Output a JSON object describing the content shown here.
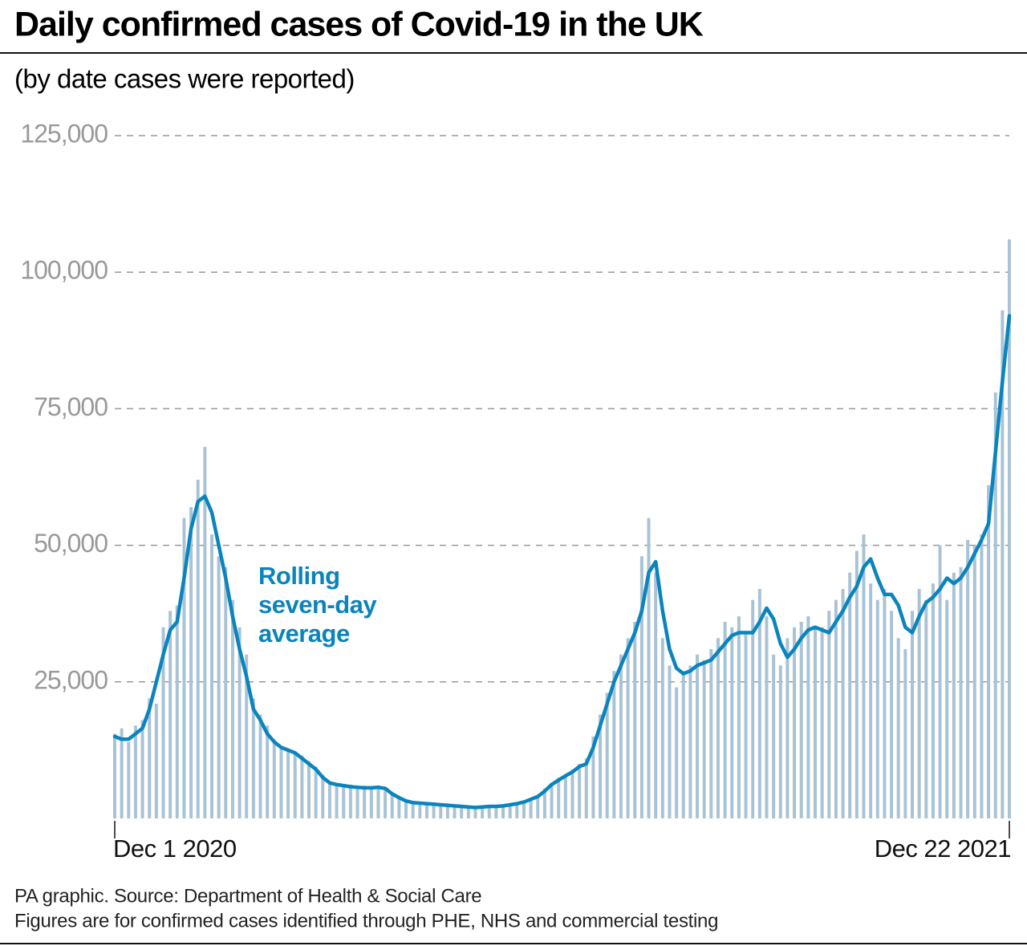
{
  "chart_data": {
    "type": "bar-line",
    "title": "Daily confirmed cases of Covid-19 in the UK",
    "subtitle": "(by date cases were reported)",
    "source": "PA graphic. Source: Department of Health & Social Care",
    "note": "Figures are for confirmed cases identified through PHE, NHS and commercial testing",
    "categories": [
      "Dec 1 2020",
      null,
      null,
      null,
      null,
      null,
      null,
      null,
      null,
      null,
      null,
      null,
      null,
      null,
      null,
      null,
      null,
      null,
      null,
      null,
      null,
      null,
      null,
      null,
      null,
      null,
      null,
      null,
      null,
      null,
      null,
      null,
      null,
      null,
      null,
      null,
      null,
      null,
      null,
      null,
      null,
      null,
      null,
      null,
      null,
      null,
      null,
      null,
      null,
      null,
      null,
      null,
      null,
      null,
      null,
      null,
      null,
      null,
      null,
      null,
      null,
      null,
      null,
      null,
      null,
      null,
      null,
      null,
      null,
      null,
      null,
      null,
      null,
      null,
      null,
      null,
      null,
      null,
      null,
      null,
      null,
      null,
      null,
      null,
      null,
      null,
      null,
      null,
      null,
      null,
      null,
      null,
      null,
      null,
      null,
      null,
      null,
      null,
      null,
      null,
      null,
      null,
      null,
      null,
      null,
      null,
      null,
      null,
      null,
      null,
      null,
      null,
      null,
      null,
      null,
      null,
      null,
      null,
      null,
      null,
      null,
      null,
      null,
      null,
      null,
      null,
      null,
      null,
      null,
      "Dec 22 2021"
    ],
    "series": [
      {
        "type": "bar",
        "color": "#a9c3d5",
        "values": [
          15500,
          16500,
          14000,
          17000,
          18000,
          22000,
          21000,
          35000,
          38000,
          39000,
          55000,
          57000,
          62000,
          68000,
          52000,
          48000,
          46000,
          40000,
          35000,
          30000,
          22000,
          19000,
          17000,
          14500,
          13000,
          12500,
          12000,
          11500,
          10500,
          9500,
          8000,
          6500,
          6500,
          6000,
          6200,
          5500,
          6000,
          5800,
          6000,
          5200,
          4500,
          3500,
          3300,
          2800,
          3000,
          2700,
          2800,
          2400,
          2600,
          2200,
          2300,
          1900,
          2100,
          2000,
          2300,
          2100,
          2400,
          2600,
          2800,
          3200,
          3700,
          4200,
          5500,
          6500,
          7500,
          8000,
          9000,
          10000,
          11000,
          15000,
          19000,
          23000,
          27000,
          30000,
          33000,
          36000,
          48000,
          55000,
          45000,
          33000,
          28000,
          24000,
          27000,
          28000,
          30000,
          29000,
          31000,
          33000,
          36000,
          35000,
          37000,
          34000,
          40000,
          42000,
          37000,
          30000,
          28000,
          33000,
          35000,
          36000,
          37000,
          35000,
          35000,
          38000,
          40000,
          42000,
          45000,
          49000,
          52000,
          43000,
          40000,
          42000,
          38000,
          33000,
          31000,
          38000,
          42000,
          40000,
          43000,
          50000,
          40000,
          45000,
          46000,
          51000,
          50000,
          52000,
          61000,
          78000,
          93000,
          106000
        ]
      },
      {
        "type": "line",
        "name": "Rolling seven-day average",
        "color": "#0a84bd",
        "values": [
          15000,
          14500,
          14500,
          15500,
          16500,
          20000,
          25000,
          30000,
          34500,
          36000,
          44000,
          53000,
          58000,
          59000,
          56000,
          50000,
          44000,
          37000,
          31000,
          26000,
          20000,
          18000,
          15500,
          14000,
          13000,
          12500,
          12000,
          11000,
          10000,
          9000,
          7500,
          6500,
          6200,
          6000,
          5800,
          5700,
          5600,
          5600,
          5700,
          5500,
          4500,
          3800,
          3200,
          2900,
          2800,
          2700,
          2600,
          2500,
          2400,
          2300,
          2200,
          2100,
          2000,
          2100,
          2200,
          2200,
          2300,
          2500,
          2700,
          3000,
          3500,
          4000,
          5000,
          6200,
          7000,
          7800,
          8500,
          9500,
          10000,
          13000,
          17000,
          21000,
          25000,
          28000,
          31000,
          34000,
          38000,
          45000,
          47000,
          38000,
          31000,
          27500,
          26500,
          27000,
          28000,
          28500,
          29000,
          30500,
          32000,
          33500,
          34000,
          34000,
          34000,
          36000,
          38500,
          36500,
          32000,
          29500,
          31000,
          33000,
          34500,
          35000,
          34500,
          34000,
          36000,
          38000,
          40500,
          42500,
          46000,
          47500,
          44000,
          41000,
          41000,
          39000,
          35000,
          34000,
          37000,
          39500,
          40500,
          42000,
          44000,
          43000,
          44000,
          46000,
          48500,
          51000,
          54000,
          67000,
          80000,
          92000
        ]
      }
    ],
    "ylim": [
      0,
      125000
    ],
    "yticks": [
      {
        "value": 25000,
        "label": "25,000"
      },
      {
        "value": 50000,
        "label": "50,000"
      },
      {
        "value": 75000,
        "label": "75,000"
      },
      {
        "value": 100000,
        "label": "100,000"
      },
      {
        "value": 125000,
        "label": "125,000"
      }
    ],
    "grid": true
  }
}
